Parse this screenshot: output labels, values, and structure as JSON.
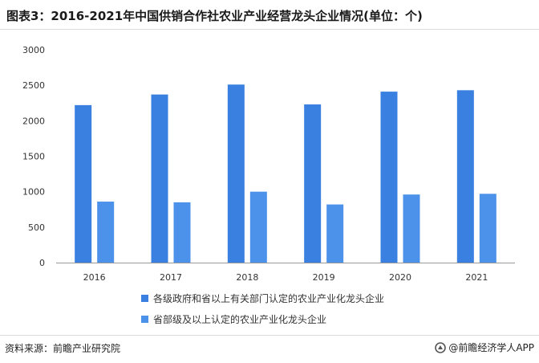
{
  "title": "图表3：2016-2021年中国供销合作社农业产业经营龙头企业情况(单位：个)",
  "source": "资料来源：前瞻产业研究院",
  "brand": "@前瞻经济学人APP",
  "colors": {
    "series_a": "#3a80e0",
    "series_b": "#4c92ea",
    "axis": "#999999",
    "tick_text": "#333333"
  },
  "icons": {
    "brand": "qianzhan-logo-icon"
  },
  "chart_data": {
    "type": "bar",
    "categories": [
      "2016",
      "2017",
      "2018",
      "2019",
      "2020",
      "2021"
    ],
    "series": [
      {
        "name": "各级政府和省以上有关部门认定的农业产业化龙头企业",
        "values": [
          2220,
          2370,
          2510,
          2230,
          2410,
          2430
        ]
      },
      {
        "name": "省部级及以上认定的农业产业化龙头企业",
        "values": [
          860,
          850,
          1000,
          820,
          960,
          970
        ]
      }
    ],
    "y_ticks": [
      "0",
      "500",
      "1000",
      "1500",
      "2000",
      "2500",
      "3000"
    ],
    "ylim": [
      0,
      3000
    ],
    "grid": false,
    "legend": "bottom"
  }
}
